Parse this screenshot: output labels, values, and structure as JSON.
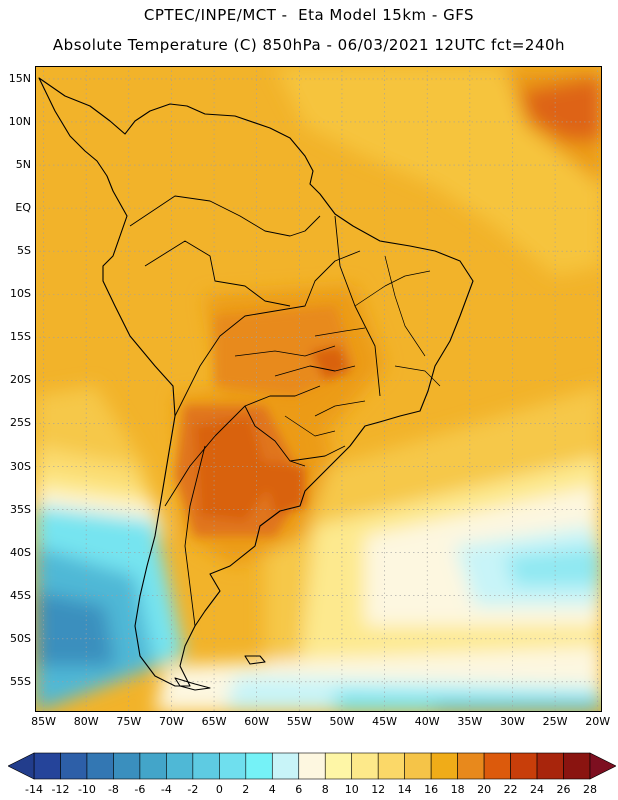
{
  "header": {
    "line1": "CPTEC/INPE/MCT -  Eta Model 15km - GFS",
    "line2": "Absolute Temperature (C) 850hPa - 06/03/2021 12UTC fct=240h"
  },
  "map": {
    "lat_labels": [
      "15N",
      "10N",
      "5N",
      "EQ",
      "5S",
      "10S",
      "15S",
      "20S",
      "25S",
      "30S",
      "35S",
      "40S",
      "45S",
      "50S",
      "55S"
    ],
    "lon_labels": [
      "85W",
      "80W",
      "75W",
      "70W",
      "65W",
      "60W",
      "55W",
      "50W",
      "45W",
      "40W",
      "35W",
      "30W",
      "25W",
      "20W"
    ],
    "lat_range": [
      16.5,
      -58.5
    ],
    "lon_range": [
      -86,
      -19.5
    ]
  },
  "colorbar": {
    "labels": [
      "-14",
      "-12",
      "-10",
      "-8",
      "-6",
      "-4",
      "-2",
      "0",
      "2",
      "4",
      "6",
      "8",
      "10",
      "12",
      "14",
      "16",
      "18",
      "20",
      "22",
      "24",
      "26",
      "28"
    ],
    "under_color": "#223d8c",
    "over_color": "#7d0f20",
    "colors": [
      "#25449a",
      "#2d5fa8",
      "#3377b3",
      "#3a8fbe",
      "#43a5c9",
      "#4fb8d6",
      "#5ecbe2",
      "#6fdfee",
      "#75f2f7",
      "#c8f4f8",
      "#fdf7e0",
      "#fef6a6",
      "#fde98a",
      "#fbd868",
      "#f5c448",
      "#f0ac18",
      "#e8891c",
      "#dc5a0c",
      "#c83e0a",
      "#a8250c",
      "#8a1410"
    ]
  }
}
